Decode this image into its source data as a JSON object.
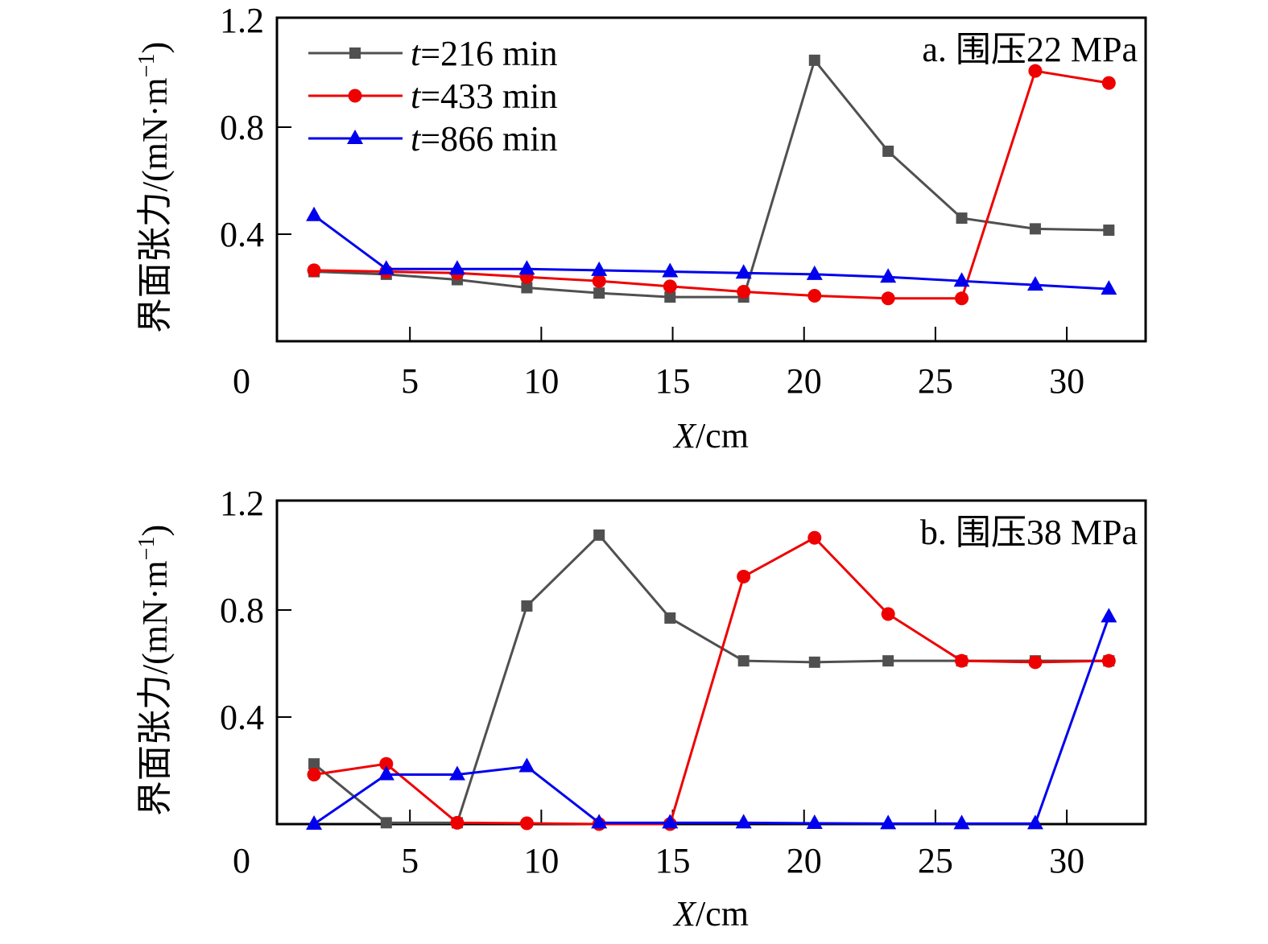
{
  "chart_data": [
    {
      "type": "line",
      "panel_label": "a. 围压22 MPa",
      "xlabel_italic": "X",
      "xlabel_rest": "/cm",
      "ylabel": "界面张力/(mN·m",
      "ylabel_sup": "−1",
      "ylabel_close": ")",
      "xlim": [
        0,
        33
      ],
      "ylim": [
        0,
        1.2
      ],
      "xticks": [
        0,
        5,
        10,
        15,
        20,
        25,
        30
      ],
      "xtick_labels": [
        "0",
        "5",
        "10",
        "15",
        "20",
        "25",
        "30"
      ],
      "yticks": [
        0.4,
        0.8,
        1.2
      ],
      "ytick_labels": [
        "0.4",
        "0.8",
        "1.2"
      ],
      "grid": false,
      "legend_position": "top-left",
      "x": [
        1.35,
        4.1,
        6.8,
        9.45,
        12.2,
        14.9,
        17.7,
        20.4,
        23.2,
        26.0,
        28.8,
        31.6
      ],
      "series": [
        {
          "name": "t=216 min",
          "name_italic": "t",
          "name_rest": "=216 min",
          "color": "#505050",
          "marker": "square",
          "values": [
            0.26,
            0.25,
            0.23,
            0.2,
            0.18,
            0.165,
            0.165,
            1.05,
            0.71,
            0.46,
            0.42,
            0.415
          ]
        },
        {
          "name": "t=433 min",
          "name_italic": "t",
          "name_rest": "=433 min",
          "color": "#ee0000",
          "marker": "circle",
          "values": [
            0.265,
            0.26,
            0.255,
            0.24,
            0.225,
            0.205,
            0.185,
            0.17,
            0.16,
            0.16,
            1.01,
            0.965
          ]
        },
        {
          "name": "t=866 min",
          "name_italic": "t",
          "name_rest": "=866 min",
          "color": "#0000ee",
          "marker": "triangle",
          "values": [
            0.47,
            0.27,
            0.27,
            0.27,
            0.265,
            0.26,
            0.255,
            0.25,
            0.24,
            0.225,
            0.21,
            0.195
          ]
        }
      ]
    },
    {
      "type": "line",
      "panel_label": "b. 围压38 MPa",
      "xlabel_italic": "X",
      "xlabel_rest": "/cm",
      "ylabel": "界面张力/(mN·m",
      "ylabel_sup": "−1",
      "ylabel_close": ")",
      "xlim": [
        0,
        33
      ],
      "ylim": [
        0,
        1.2
      ],
      "xticks": [
        0,
        5,
        10,
        15,
        20,
        25,
        30
      ],
      "xtick_labels": [
        "0",
        "5",
        "10",
        "15",
        "20",
        "25",
        "30"
      ],
      "yticks": [
        0.4,
        0.8,
        1.2
      ],
      "ytick_labels": [
        "0.4",
        "0.8",
        "1.2"
      ],
      "grid": false,
      "legend_position": "none",
      "x": [
        1.35,
        4.1,
        6.8,
        9.45,
        12.2,
        14.9,
        17.7,
        20.4,
        23.2,
        26.0,
        28.8,
        31.6
      ],
      "series": [
        {
          "name": "t=216 min",
          "color": "#505050",
          "marker": "square",
          "values": [
            0.225,
            0.005,
            0.005,
            0.815,
            1.08,
            0.77,
            0.61,
            0.605,
            0.61,
            0.61,
            0.61,
            0.61
          ]
        },
        {
          "name": "t=433 min",
          "color": "#ee0000",
          "marker": "circle",
          "values": [
            0.185,
            0.225,
            0.005,
            0.003,
            0.0,
            0.0,
            0.925,
            1.07,
            0.785,
            0.61,
            0.605,
            0.61
          ]
        },
        {
          "name": "t=866 min",
          "color": "#0000ee",
          "marker": "triangle",
          "values": [
            0.0,
            0.185,
            0.185,
            0.215,
            0.005,
            0.005,
            0.005,
            0.003,
            0.002,
            0.002,
            0.002,
            0.775
          ]
        }
      ]
    }
  ]
}
